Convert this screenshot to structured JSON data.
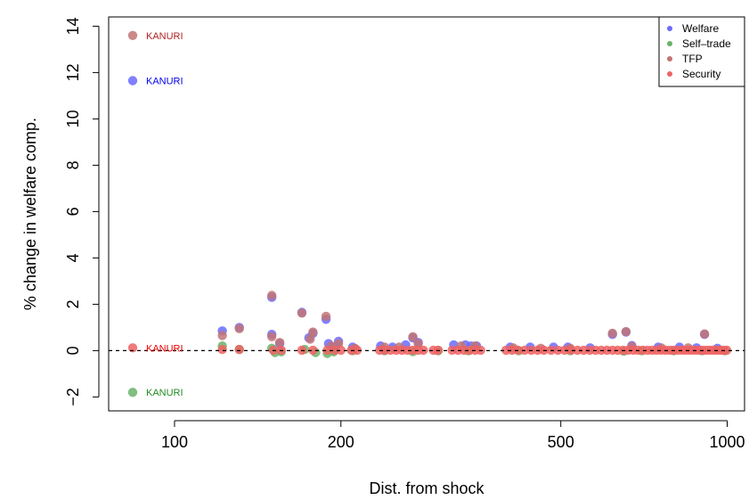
{
  "chart_data": {
    "type": "scatter",
    "title": "",
    "xlabel": "Dist. from shock",
    "ylabel": "% change in welfare comp.",
    "x_scale": "log",
    "xlim": [
      76,
      1075
    ],
    "ylim": [
      -2.6,
      14.4
    ],
    "x_ticks": [
      100,
      200,
      500,
      1000
    ],
    "y_ticks": [
      -2,
      0,
      2,
      4,
      6,
      8,
      10,
      12,
      14
    ],
    "y_tick_labels": [
      "−2",
      "0",
      "2",
      "4",
      "6",
      "8",
      "10",
      "12",
      "14"
    ],
    "reference_line": {
      "y": 0,
      "style": "dashed"
    },
    "grid": false,
    "legend_position": "top-right",
    "annotations": [
      {
        "text": "KANURI",
        "x": 84,
        "y": 13.6,
        "color": "#b22222"
      },
      {
        "text": "KANURI",
        "x": 84,
        "y": 11.65,
        "color": "#0000ee"
      },
      {
        "text": "KANURI",
        "x": 84,
        "y": 0.12,
        "color": "#ee0000"
      },
      {
        "text": "KANURI",
        "x": 84,
        "y": -1.8,
        "color": "#228b22"
      }
    ],
    "series": [
      {
        "name": "Welfare",
        "color": "#6b6bff",
        "points": [
          [
            84,
            11.65
          ],
          [
            122,
            0.85
          ],
          [
            131,
            1.0
          ],
          [
            150,
            0.7
          ],
          [
            150,
            2.3
          ],
          [
            155,
            0.3
          ],
          [
            170,
            1.65
          ],
          [
            175,
            0.55
          ],
          [
            178,
            0.75
          ],
          [
            188,
            1.35
          ],
          [
            190,
            0.3
          ],
          [
            195,
            0.15
          ],
          [
            198,
            0.4
          ],
          [
            210,
            0.15
          ],
          [
            236,
            0.2
          ],
          [
            248,
            0.15
          ],
          [
            262,
            0.25
          ],
          [
            270,
            0.55
          ],
          [
            276,
            0.35
          ],
          [
            320,
            0.25
          ],
          [
            336,
            0.25
          ],
          [
            344,
            0.2
          ],
          [
            352,
            0.2
          ],
          [
            405,
            0.15
          ],
          [
            440,
            0.15
          ],
          [
            485,
            0.15
          ],
          [
            515,
            0.15
          ],
          [
            565,
            0.12
          ],
          [
            620,
            0.7
          ],
          [
            656,
            0.8
          ],
          [
            672,
            0.22
          ],
          [
            750,
            0.15
          ],
          [
            820,
            0.15
          ],
          [
            880,
            0.12
          ],
          [
            910,
            0.7
          ],
          [
            960,
            0.1
          ]
        ]
      },
      {
        "name": "Self–trade",
        "color": "#6bb36b",
        "points": [
          [
            84,
            -1.8
          ],
          [
            122,
            0.2
          ],
          [
            131,
            0.05
          ],
          [
            150,
            0.1
          ],
          [
            152,
            -0.08
          ],
          [
            156,
            -0.05
          ],
          [
            172,
            0.05
          ],
          [
            180,
            -0.08
          ],
          [
            189,
            -0.12
          ],
          [
            194,
            -0.05
          ],
          [
            210,
            0.0
          ],
          [
            240,
            0.0
          ],
          [
            270,
            -0.04
          ],
          [
            300,
            0.0
          ],
          [
            340,
            0.0
          ],
          [
            420,
            0.0
          ],
          [
            520,
            0.0
          ],
          [
            650,
            -0.02
          ],
          [
            700,
            0.0
          ],
          [
            800,
            0.0
          ],
          [
            900,
            0.0
          ],
          [
            990,
            0.0
          ]
        ]
      },
      {
        "name": "TFP",
        "color": "#c27474",
        "points": [
          [
            84,
            13.6
          ],
          [
            122,
            0.65
          ],
          [
            131,
            0.95
          ],
          [
            150,
            0.6
          ],
          [
            150,
            2.38
          ],
          [
            155,
            0.35
          ],
          [
            170,
            1.62
          ],
          [
            176,
            0.5
          ],
          [
            178,
            0.8
          ],
          [
            188,
            1.48
          ],
          [
            192,
            0.2
          ],
          [
            198,
            0.3
          ],
          [
            212,
            0.1
          ],
          [
            240,
            0.15
          ],
          [
            255,
            0.15
          ],
          [
            270,
            0.6
          ],
          [
            276,
            0.3
          ],
          [
            330,
            0.2
          ],
          [
            350,
            0.2
          ],
          [
            410,
            0.12
          ],
          [
            460,
            0.1
          ],
          [
            520,
            0.1
          ],
          [
            620,
            0.75
          ],
          [
            656,
            0.82
          ],
          [
            672,
            0.18
          ],
          [
            760,
            0.12
          ],
          [
            850,
            0.12
          ],
          [
            910,
            0.72
          ]
        ]
      },
      {
        "name": "Security",
        "color": "#ee6363",
        "points": [
          [
            84,
            0.12
          ],
          [
            122,
            0.05
          ],
          [
            131,
            0.05
          ],
          [
            151,
            0.02
          ],
          [
            156,
            0.02
          ],
          [
            170,
            0.02
          ],
          [
            178,
            0.02
          ],
          [
            189,
            0.02
          ],
          [
            195,
            0.02
          ],
          [
            200,
            0.02
          ],
          [
            209,
            0.02
          ],
          [
            214,
            0.02
          ],
          [
            235,
            0.02
          ],
          [
            240,
            0.02
          ],
          [
            246,
            0.02
          ],
          [
            252,
            0.02
          ],
          [
            258,
            0.02
          ],
          [
            264,
            0.02
          ],
          [
            270,
            0.02
          ],
          [
            276,
            0.02
          ],
          [
            282,
            0.02
          ],
          [
            294,
            0.02
          ],
          [
            300,
            0.02
          ],
          [
            318,
            0.02
          ],
          [
            326,
            0.02
          ],
          [
            334,
            0.02
          ],
          [
            342,
            0.02
          ],
          [
            350,
            0.02
          ],
          [
            358,
            0.02
          ],
          [
            398,
            0.02
          ],
          [
            408,
            0.02
          ],
          [
            418,
            0.02
          ],
          [
            430,
            0.02
          ],
          [
            442,
            0.02
          ],
          [
            454,
            0.02
          ],
          [
            466,
            0.02
          ],
          [
            480,
            0.02
          ],
          [
            494,
            0.02
          ],
          [
            508,
            0.02
          ],
          [
            522,
            0.02
          ],
          [
            536,
            0.02
          ],
          [
            550,
            0.02
          ],
          [
            564,
            0.02
          ],
          [
            578,
            0.02
          ],
          [
            592,
            0.02
          ],
          [
            606,
            0.02
          ],
          [
            620,
            0.02
          ],
          [
            634,
            0.02
          ],
          [
            648,
            0.02
          ],
          [
            662,
            0.02
          ],
          [
            676,
            0.02
          ],
          [
            690,
            0.02
          ],
          [
            704,
            0.02
          ],
          [
            718,
            0.02
          ],
          [
            732,
            0.02
          ],
          [
            746,
            0.02
          ],
          [
            760,
            0.02
          ],
          [
            774,
            0.02
          ],
          [
            788,
            0.02
          ],
          [
            802,
            0.02
          ],
          [
            816,
            0.02
          ],
          [
            830,
            0.02
          ],
          [
            844,
            0.02
          ],
          [
            858,
            0.02
          ],
          [
            872,
            0.02
          ],
          [
            886,
            0.02
          ],
          [
            900,
            0.02
          ],
          [
            914,
            0.02
          ],
          [
            928,
            0.02
          ],
          [
            942,
            0.02
          ],
          [
            956,
            0.02
          ],
          [
            970,
            0.02
          ],
          [
            984,
            0.02
          ],
          [
            998,
            0.02
          ]
        ]
      }
    ]
  }
}
